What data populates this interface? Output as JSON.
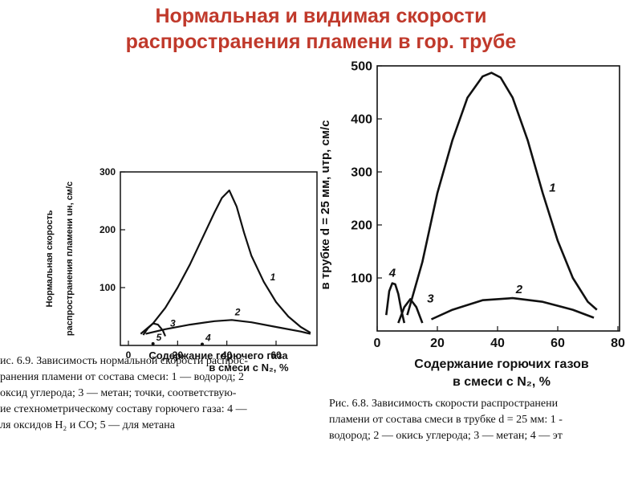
{
  "slide": {
    "title_line1": "Нормальная и видимая скорости",
    "title_line2": "распространения пламени в гор. трубе",
    "title_color": "#c0392b"
  },
  "left_figure": {
    "caption_lines": [
      "ис. 6.9. Зависимость нормальной скорости распрос-",
      "ранения пламени от состава смеси: 1 — водород; 2",
      "оксид углерода; 3 — метан; точки, соответствую-",
      "ие стехнометрическому составу горючего газа: 4 —",
      "ля оксидов H₂ и CO; 5 — для метана"
    ]
  },
  "right_figure": {
    "caption_lines": [
      "Рис. 6.8. Зависимость скорости распространени",
      "пламени от состава смеси в трубке d = 25 мм: 1 -",
      "водород; 2 — окись углерода; 3 — метан; 4 — эт"
    ]
  },
  "chart_data": [
    {
      "type": "line",
      "title": "",
      "xlabel_line1": "Содержание горючего газа",
      "xlabel_line2": "в смеси с N₂, %",
      "ylabel_line1": "Нормальная скорость",
      "ylabel_line2": "распространения пламени uн, см/с",
      "xlim": [
        0,
        75
      ],
      "ylim": [
        0,
        300
      ],
      "x_ticks": [
        0,
        20,
        40,
        60
      ],
      "y_ticks": [
        100,
        200,
        300
      ],
      "x_tick_labels": [
        "0",
        "20",
        "40",
        "60"
      ],
      "y_tick_labels": [
        "100",
        "200",
        "300"
      ],
      "grid": false,
      "series": [
        {
          "name": "1",
          "x": [
            5,
            10,
            15,
            20,
            25,
            30,
            35,
            38,
            41,
            44,
            47,
            50,
            55,
            60,
            65,
            70,
            74
          ],
          "y": [
            20,
            38,
            65,
            100,
            140,
            185,
            230,
            255,
            268,
            240,
            195,
            155,
            110,
            75,
            50,
            32,
            22
          ]
        },
        {
          "name": "2",
          "x": [
            7,
            15,
            25,
            35,
            42,
            50,
            60,
            70,
            74
          ],
          "y": [
            20,
            28,
            36,
            42,
            44,
            40,
            32,
            24,
            20
          ]
        },
        {
          "name": "3",
          "x": [
            6,
            8,
            10,
            12,
            14,
            15
          ],
          "y": [
            18,
            30,
            38,
            36,
            26,
            16
          ]
        }
      ],
      "points": [
        {
          "name": "4",
          "x": 30,
          "y": 2
        },
        {
          "name": "5",
          "x": 10,
          "y": 3
        }
      ]
    },
    {
      "type": "line",
      "title": "",
      "xlabel_line1": "Содержание горючих газов",
      "xlabel_line2": "в смеси с N₂, %",
      "ylabel": "в трубке d = 25 мм, uтр, см/с",
      "xlim": [
        0,
        80
      ],
      "ylim": [
        0,
        500
      ],
      "x_ticks": [
        0,
        20,
        40,
        60,
        80
      ],
      "y_ticks": [
        100,
        200,
        300,
        400,
        500
      ],
      "x_tick_labels": [
        "0",
        "20",
        "40",
        "60",
        "80"
      ],
      "y_tick_labels": [
        "100",
        "200",
        "300",
        "400",
        "500"
      ],
      "grid": false,
      "series": [
        {
          "name": "1",
          "x": [
            10,
            15,
            20,
            25,
            30,
            35,
            38,
            41,
            45,
            50,
            55,
            60,
            65,
            70,
            73
          ],
          "y": [
            30,
            130,
            260,
            360,
            440,
            480,
            487,
            478,
            440,
            360,
            260,
            170,
            100,
            55,
            40
          ]
        },
        {
          "name": "2",
          "x": [
            18,
            25,
            35,
            45,
            55,
            65,
            72
          ],
          "y": [
            22,
            40,
            58,
            62,
            55,
            40,
            25
          ]
        },
        {
          "name": "3",
          "x": [
            7,
            9,
            11,
            13,
            15
          ],
          "y": [
            15,
            45,
            60,
            45,
            15
          ]
        },
        {
          "name": "4",
          "x": [
            3,
            4,
            5,
            6,
            7,
            8,
            9
          ],
          "y": [
            30,
            75,
            90,
            88,
            70,
            40,
            15
          ]
        }
      ]
    }
  ]
}
